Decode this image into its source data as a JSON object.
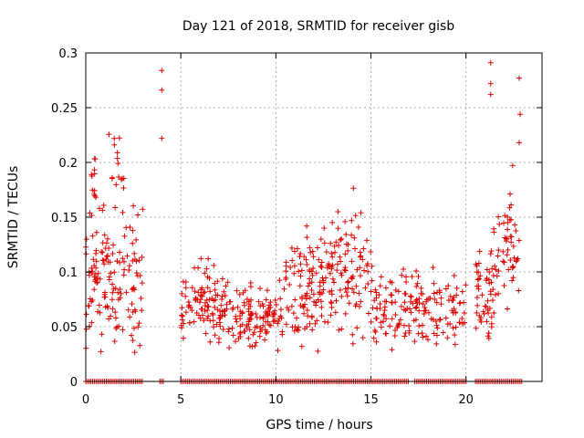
{
  "chart_data": {
    "type": "scatter",
    "title": "Day 121 of 2018, SRMTID for receiver gisb",
    "xlabel": "GPS time / hours",
    "ylabel": "SRMTID / TECUs",
    "xlim": [
      0,
      24
    ],
    "ylim": [
      0,
      0.3
    ],
    "grid": true,
    "xticks": [
      0,
      5,
      10,
      15,
      20
    ],
    "xtick_labels": [
      "0",
      "5",
      "10",
      "15",
      "20"
    ],
    "yticks": [
      0,
      0.05,
      0.1,
      0.15,
      0.2,
      0.25,
      0.3
    ],
    "ytick_labels": [
      "0",
      "0.05",
      "0.1",
      "0.15",
      "0.2",
      "0.25",
      "0.3"
    ],
    "marker": "+",
    "color": "#dd0000",
    "series": [
      {
        "name": "SRMTID",
        "notable_points": [
          {
            "x": 4.0,
            "y": 0.284
          },
          {
            "x": 4.0,
            "y": 0.266
          },
          {
            "x": 4.0,
            "y": 0.222
          },
          {
            "x": 21.3,
            "y": 0.291
          },
          {
            "x": 21.3,
            "y": 0.272
          },
          {
            "x": 21.3,
            "y": 0.262
          },
          {
            "x": 22.8,
            "y": 0.277
          },
          {
            "x": 22.85,
            "y": 0.244
          },
          {
            "x": 22.8,
            "y": 0.218
          }
        ],
        "clusters": [
          {
            "x_range": [
              0.0,
              3.0
            ],
            "y_mean": 0.1,
            "y_spread": 0.05,
            "count": 150
          },
          {
            "x_range": [
              0.3,
              0.5
            ],
            "y_mean": 0.18,
            "y_spread": 0.02,
            "count": 10
          },
          {
            "x_range": [
              1.2,
              2.0
            ],
            "y_mean": 0.2,
            "y_spread": 0.025,
            "count": 14
          },
          {
            "x_range": [
              5.0,
              7.5
            ],
            "y_mean": 0.07,
            "y_spread": 0.025,
            "count": 110
          },
          {
            "x_range": [
              7.5,
              10.5
            ],
            "y_mean": 0.06,
            "y_spread": 0.02,
            "count": 120
          },
          {
            "x_range": [
              10.5,
              13.0
            ],
            "y_mean": 0.085,
            "y_spread": 0.035,
            "count": 130
          },
          {
            "x_range": [
              13.0,
              15.0
            ],
            "y_mean": 0.1,
            "y_spread": 0.04,
            "count": 80
          },
          {
            "x_range": [
              15.0,
              17.0
            ],
            "y_mean": 0.07,
            "y_spread": 0.025,
            "count": 70
          },
          {
            "x_range": [
              17.0,
              20.0
            ],
            "y_mean": 0.065,
            "y_spread": 0.025,
            "count": 100
          },
          {
            "x_range": [
              20.5,
              21.5
            ],
            "y_mean": 0.08,
            "y_spread": 0.03,
            "count": 50
          },
          {
            "x_range": [
              21.4,
              22.8
            ],
            "y_mean": 0.13,
            "y_spread": 0.04,
            "count": 55
          }
        ],
        "baseline_segments": [
          [
            0.0,
            3.0
          ],
          [
            3.9,
            4.1
          ],
          [
            5.0,
            17.0
          ],
          [
            17.3,
            20.0
          ],
          [
            20.5,
            23.0
          ]
        ],
        "baseline_value": 0
      }
    ]
  }
}
